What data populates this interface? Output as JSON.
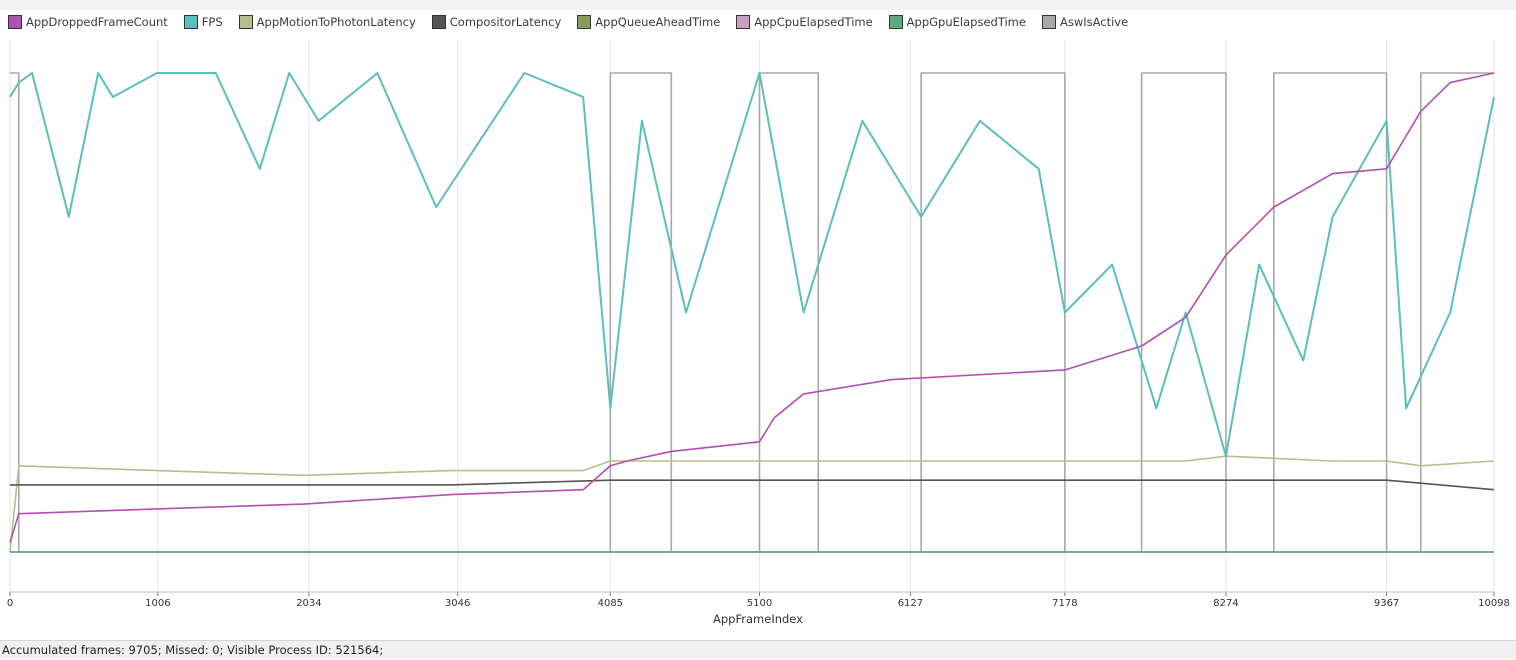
{
  "status_text": "Accumulated frames: 9705; Missed: 0; Visible Process ID: 521564;",
  "chart_data": {
    "type": "line",
    "xlabel": "AppFrameIndex",
    "x_ticks": [
      "0",
      "1006",
      "2034",
      "3046",
      "4085",
      "5100",
      "6127",
      "7178",
      "8274",
      "9367",
      "10098"
    ],
    "xlim": [
      0,
      10098
    ],
    "grid": "vertical",
    "legend_placement": "top-left",
    "series": [
      {
        "name": "AppDroppedFrameCount",
        "color": "#b050b0",
        "x": [
          0,
          60,
          1000,
          2000,
          3000,
          3900,
          4085,
          4200,
          4500,
          5100,
          5200,
          5400,
          6000,
          7178,
          7700,
          8000,
          8274,
          8600,
          9000,
          9367,
          9600,
          9800,
          10098
        ],
        "y": [
          0.02,
          0.08,
          0.09,
          0.1,
          0.12,
          0.13,
          0.18,
          0.19,
          0.21,
          0.23,
          0.28,
          0.33,
          0.36,
          0.38,
          0.43,
          0.49,
          0.62,
          0.72,
          0.79,
          0.8,
          0.92,
          0.98,
          1.0
        ]
      },
      {
        "name": "FPS",
        "color": "#5bbfbf",
        "x": [
          0,
          60,
          150,
          400,
          600,
          700,
          1000,
          1400,
          1700,
          1900,
          2100,
          2500,
          2900,
          3500,
          3900,
          4085,
          4300,
          4600,
          5100,
          5400,
          5800,
          6200,
          6600,
          7000,
          7178,
          7500,
          7800,
          8000,
          8274,
          8500,
          8800,
          9000,
          9367,
          9500,
          9800,
          10098
        ],
        "y": [
          0.95,
          0.98,
          1.0,
          0.7,
          1.0,
          0.95,
          1.0,
          1.0,
          0.8,
          1.0,
          0.9,
          1.0,
          0.72,
          1.0,
          0.95,
          0.3,
          0.9,
          0.5,
          1.0,
          0.5,
          0.9,
          0.7,
          0.9,
          0.8,
          0.5,
          0.6,
          0.3,
          0.5,
          0.2,
          0.6,
          0.4,
          0.7,
          0.9,
          0.3,
          0.5,
          0.95
        ]
      },
      {
        "name": "AppMotionToPhotonLatency",
        "color": "#b8be8c",
        "x": [
          0,
          60,
          1000,
          2000,
          3000,
          3900,
          4085,
          4300,
          5100,
          6000,
          7178,
          8000,
          8274,
          9000,
          9367,
          9600,
          10098
        ],
        "y": [
          0.0,
          0.18,
          0.17,
          0.16,
          0.17,
          0.17,
          0.19,
          0.19,
          0.19,
          0.19,
          0.19,
          0.19,
          0.2,
          0.19,
          0.19,
          0.18,
          0.19
        ]
      },
      {
        "name": "CompositorLatency",
        "color": "#555555",
        "x": [
          0,
          1000,
          2000,
          3000,
          4085,
          5100,
          6000,
          7178,
          8274,
          9367,
          10098
        ],
        "y": [
          0.14,
          0.14,
          0.14,
          0.14,
          0.15,
          0.15,
          0.15,
          0.15,
          0.15,
          0.15,
          0.13
        ]
      },
      {
        "name": "AppQueueAheadTime",
        "color": "#8a9a5b",
        "x": [
          0,
          10098
        ],
        "y": [
          0.0,
          0.0
        ]
      },
      {
        "name": "AppCpuElapsedTime",
        "color": "#c8a0c0",
        "x": [
          0,
          10098
        ],
        "y": [
          0.0,
          0.0
        ]
      },
      {
        "name": "AppGpuElapsedTime",
        "color": "#5fa882",
        "x": [
          0,
          10098
        ],
        "y": [
          0.0,
          0.0
        ]
      },
      {
        "name": "AswIsActive",
        "color": "#a8a8a8",
        "x": [
          0,
          60,
          4000,
          4085,
          4500,
          5100,
          5500,
          6200,
          7178,
          7700,
          8274,
          8600,
          9367,
          9600,
          10098
        ],
        "y": [
          1,
          0,
          0,
          1,
          0,
          1,
          0,
          1,
          0,
          1,
          0,
          1,
          0,
          1,
          1
        ]
      }
    ]
  }
}
